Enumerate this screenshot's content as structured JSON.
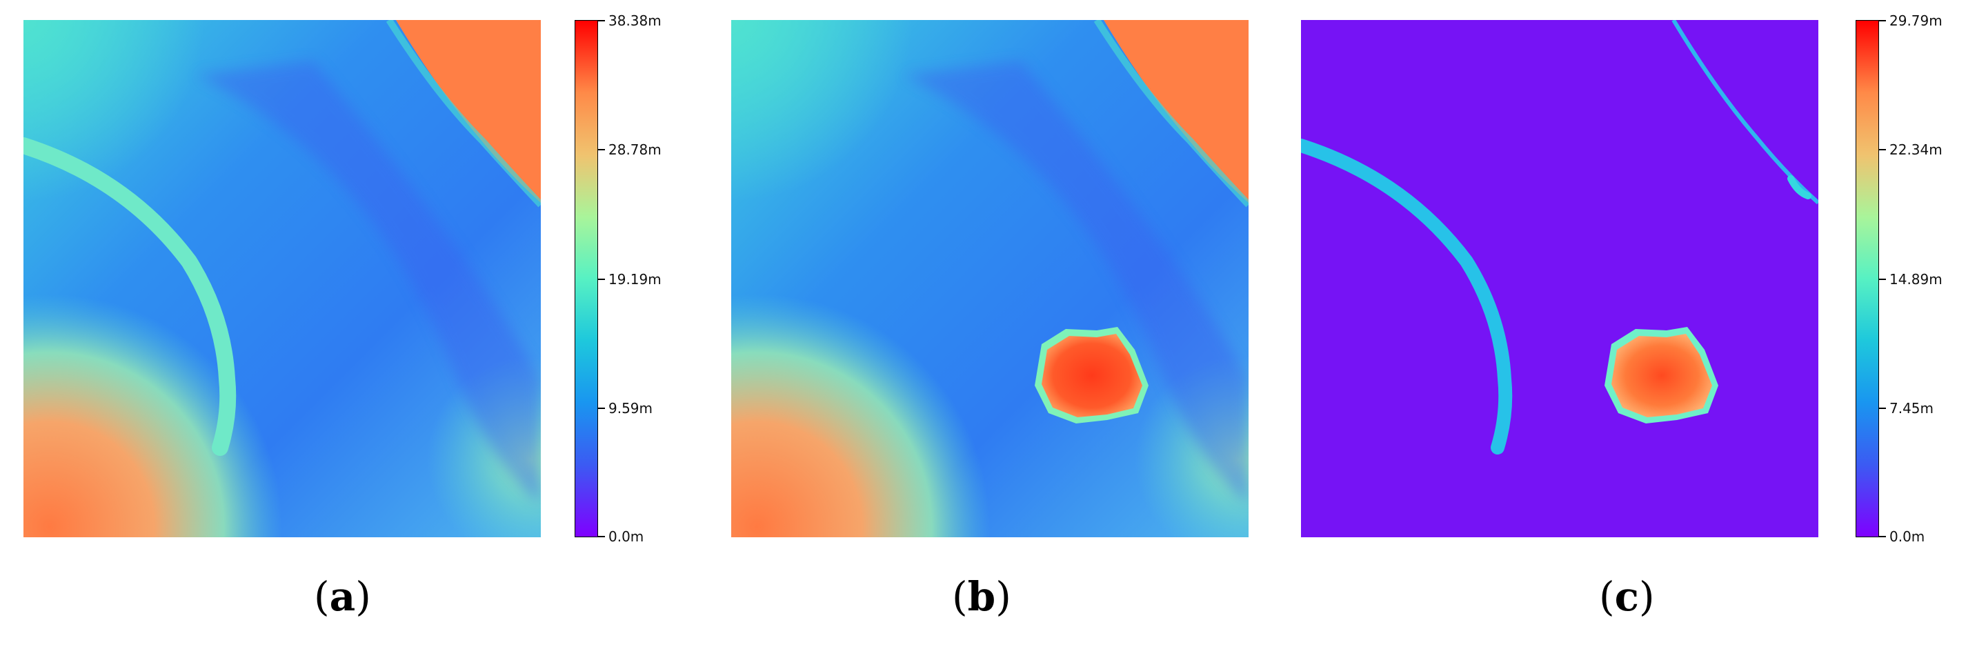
{
  "panels": [
    {
      "id": "a",
      "caption_open": "(",
      "caption_letter": "a",
      "caption_close": ")",
      "content": "height-map"
    },
    {
      "id": "b",
      "caption_open": "(",
      "caption_letter": "b",
      "caption_close": ")",
      "content": "height-map-with-building"
    },
    {
      "id": "c",
      "caption_open": "(",
      "caption_letter": "c",
      "caption_close": ")",
      "content": "height-difference-map"
    }
  ],
  "colorbar_1": {
    "ticks": [
      "38.38m",
      "28.78m",
      "19.19m",
      "9.59m",
      "0.0m"
    ],
    "min": 0.0,
    "max": 38.38
  },
  "colorbar_2": {
    "ticks": [
      "29.79m",
      "22.34m",
      "14.89m",
      "7.45m",
      "0.0m"
    ],
    "min": 0.0,
    "max": 29.79
  },
  "colors": {
    "low": "#7f00ff",
    "mid_low": "#1996f0",
    "mid": "#57f1c3",
    "mid_high": "#f0c36f",
    "high": "#ff0000"
  }
}
